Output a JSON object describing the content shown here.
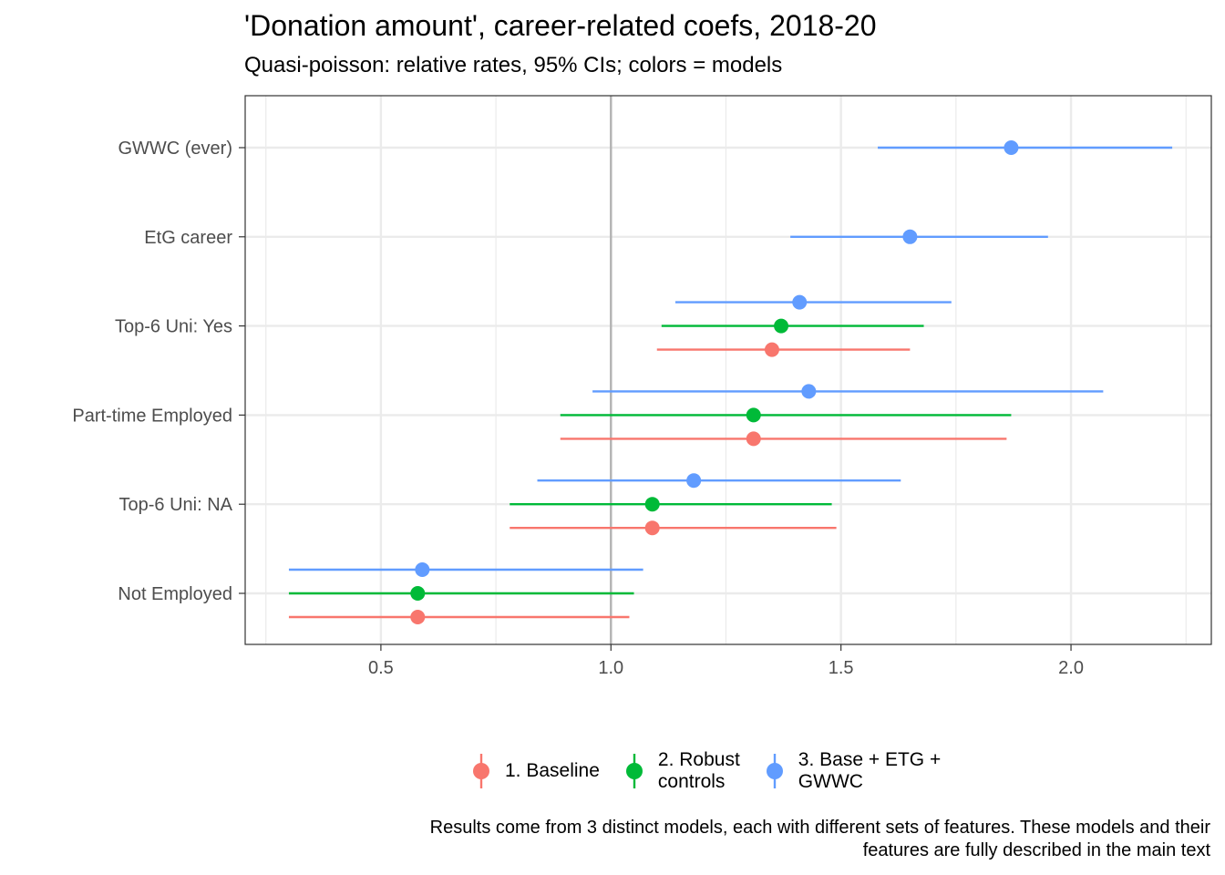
{
  "chart_data": {
    "type": "scatter",
    "title": "'Donation amount', career-related coefs, 2018-20",
    "subtitle": "Quasi-poisson: relative rates, 95% CIs; colors = models",
    "caption_line1": "Results come from 3 distinct models, each with different sets of features. These models and their",
    "caption_line2": "features are fully described in the main text",
    "xlim": [
      0.205,
      2.305
    ],
    "x_ticks": [
      0.5,
      1.0,
      1.5,
      2.0
    ],
    "x_tick_labels": [
      "0.5",
      "1.0",
      "1.5",
      "2.0"
    ],
    "reference_line": 1.0,
    "grid": true,
    "legend_position": "bottom",
    "categories": [
      "GWWC (ever)",
      "EtG career",
      "Top-6 Uni: Yes",
      "Part-time Employed",
      "Top-6 Uni: NA",
      "Not Employed"
    ],
    "series": [
      {
        "name": "1. Baseline",
        "color": "#F8766D",
        "points": [
          {
            "category": "Top-6 Uni: Yes",
            "estimate": 1.35,
            "lower": 1.1,
            "upper": 1.65
          },
          {
            "category": "Part-time Employed",
            "estimate": 1.31,
            "lower": 0.89,
            "upper": 1.86
          },
          {
            "category": "Top-6 Uni: NA",
            "estimate": 1.09,
            "lower": 0.78,
            "upper": 1.49
          },
          {
            "category": "Not Employed",
            "estimate": 0.58,
            "lower": 0.3,
            "upper": 1.04
          }
        ]
      },
      {
        "name": "2. Robust\ncontrols",
        "color": "#00BA38",
        "points": [
          {
            "category": "Top-6 Uni: Yes",
            "estimate": 1.37,
            "lower": 1.11,
            "upper": 1.68
          },
          {
            "category": "Part-time Employed",
            "estimate": 1.31,
            "lower": 0.89,
            "upper": 1.87
          },
          {
            "category": "Top-6 Uni: NA",
            "estimate": 1.09,
            "lower": 0.78,
            "upper": 1.48
          },
          {
            "category": "Not Employed",
            "estimate": 0.58,
            "lower": 0.3,
            "upper": 1.05
          }
        ]
      },
      {
        "name": "3. Base + ETG +\nGWWC",
        "color": "#619CFF",
        "points": [
          {
            "category": "GWWC (ever)",
            "estimate": 1.87,
            "lower": 1.58,
            "upper": 2.22
          },
          {
            "category": "EtG career",
            "estimate": 1.65,
            "lower": 1.39,
            "upper": 1.95
          },
          {
            "category": "Top-6 Uni: Yes",
            "estimate": 1.41,
            "lower": 1.14,
            "upper": 1.74
          },
          {
            "category": "Part-time Employed",
            "estimate": 1.43,
            "lower": 0.96,
            "upper": 2.07
          },
          {
            "category": "Top-6 Uni: NA",
            "estimate": 1.18,
            "lower": 0.84,
            "upper": 1.63
          },
          {
            "category": "Not Employed",
            "estimate": 0.59,
            "lower": 0.3,
            "upper": 1.07
          }
        ]
      }
    ]
  }
}
